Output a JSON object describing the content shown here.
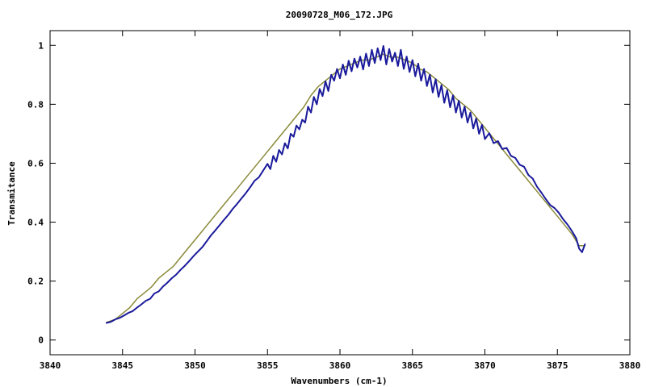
{
  "chart_data": {
    "type": "line",
    "title": "20090728_M06_172.JPG",
    "xlabel": "Wavenumbers (cm-1)",
    "ylabel": "Transmitance",
    "xlim": [
      3840,
      3880
    ],
    "ylim": [
      -0.05,
      1.05
    ],
    "xticks": [
      3840,
      3845,
      3850,
      3855,
      3860,
      3865,
      3870,
      3875,
      3880
    ],
    "yticks": [
      0,
      0.2,
      0.4,
      0.6,
      0.8,
      1
    ],
    "ytick_labels": [
      "0",
      "0.2",
      "0.4",
      "0.6",
      "0.8",
      "1"
    ],
    "grid": false,
    "legend": "none",
    "series": [
      {
        "color": "#8a8a3a",
        "points": [
          [
            3843.9,
            0.06
          ],
          [
            3844.5,
            0.07
          ],
          [
            3845.0,
            0.09
          ],
          [
            3845.5,
            0.11
          ],
          [
            3846.0,
            0.14
          ],
          [
            3846.5,
            0.16
          ],
          [
            3847.0,
            0.18
          ],
          [
            3847.5,
            0.21
          ],
          [
            3848.0,
            0.23
          ],
          [
            3848.5,
            0.25
          ],
          [
            3849.0,
            0.28
          ],
          [
            3849.5,
            0.31
          ],
          [
            3850.0,
            0.34
          ],
          [
            3850.5,
            0.37
          ],
          [
            3851.0,
            0.4
          ],
          [
            3851.5,
            0.43
          ],
          [
            3852.0,
            0.46
          ],
          [
            3852.5,
            0.49
          ],
          [
            3853.0,
            0.52
          ],
          [
            3853.5,
            0.55
          ],
          [
            3854.0,
            0.58
          ],
          [
            3854.5,
            0.61
          ],
          [
            3855.0,
            0.64
          ],
          [
            3855.5,
            0.67
          ],
          [
            3856.0,
            0.7
          ],
          [
            3856.5,
            0.73
          ],
          [
            3857.0,
            0.76
          ],
          [
            3857.5,
            0.79
          ],
          [
            3858.0,
            0.83
          ],
          [
            3858.5,
            0.86
          ],
          [
            3859.0,
            0.88
          ],
          [
            3859.5,
            0.9
          ],
          [
            3860.0,
            0.92
          ],
          [
            3860.5,
            0.93
          ],
          [
            3861.0,
            0.94
          ],
          [
            3861.5,
            0.95
          ],
          [
            3862.0,
            0.95
          ],
          [
            3862.5,
            0.96
          ],
          [
            3863.0,
            0.97
          ],
          [
            3863.5,
            0.96
          ],
          [
            3864.0,
            0.96
          ],
          [
            3864.5,
            0.95
          ],
          [
            3865.0,
            0.94
          ],
          [
            3865.5,
            0.92
          ],
          [
            3866.0,
            0.91
          ],
          [
            3866.5,
            0.89
          ],
          [
            3867.0,
            0.87
          ],
          [
            3867.5,
            0.85
          ],
          [
            3868.0,
            0.82
          ],
          [
            3868.5,
            0.8
          ],
          [
            3869.0,
            0.78
          ],
          [
            3869.5,
            0.75
          ],
          [
            3870.0,
            0.72
          ],
          [
            3870.5,
            0.69
          ],
          [
            3871.0,
            0.66
          ],
          [
            3871.5,
            0.63
          ],
          [
            3872.0,
            0.6
          ],
          [
            3872.5,
            0.57
          ],
          [
            3873.0,
            0.54
          ],
          [
            3873.5,
            0.51
          ],
          [
            3874.0,
            0.48
          ],
          [
            3874.5,
            0.45
          ],
          [
            3875.0,
            0.42
          ],
          [
            3875.5,
            0.39
          ],
          [
            3876.0,
            0.36
          ],
          [
            3876.5,
            0.32
          ],
          [
            3876.9,
            0.32
          ]
        ]
      },
      {
        "color": "#1a1a9c",
        "points": [
          [
            3843.9,
            0.058
          ],
          [
            3844.2,
            0.062
          ],
          [
            3844.5,
            0.07
          ],
          [
            3844.8,
            0.075
          ],
          [
            3845.1,
            0.083
          ],
          [
            3845.4,
            0.092
          ],
          [
            3845.7,
            0.098
          ],
          [
            3846.0,
            0.11
          ],
          [
            3846.3,
            0.121
          ],
          [
            3846.6,
            0.133
          ],
          [
            3846.9,
            0.14
          ],
          [
            3847.2,
            0.158
          ],
          [
            3847.5,
            0.165
          ],
          [
            3847.8,
            0.182
          ],
          [
            3848.1,
            0.195
          ],
          [
            3848.4,
            0.21
          ],
          [
            3848.7,
            0.222
          ],
          [
            3849.0,
            0.238
          ],
          [
            3849.3,
            0.252
          ],
          [
            3849.6,
            0.268
          ],
          [
            3849.9,
            0.285
          ],
          [
            3850.2,
            0.3
          ],
          [
            3850.5,
            0.315
          ],
          [
            3850.8,
            0.335
          ],
          [
            3851.1,
            0.355
          ],
          [
            3851.4,
            0.372
          ],
          [
            3851.7,
            0.39
          ],
          [
            3852.0,
            0.408
          ],
          [
            3852.3,
            0.425
          ],
          [
            3852.6,
            0.445
          ],
          [
            3852.9,
            0.462
          ],
          [
            3853.2,
            0.48
          ],
          [
            3853.5,
            0.498
          ],
          [
            3853.8,
            0.518
          ],
          [
            3854.1,
            0.54
          ],
          [
            3854.4,
            0.552
          ],
          [
            3854.7,
            0.575
          ],
          [
            3855.0,
            0.598
          ],
          [
            3855.2,
            0.58
          ],
          [
            3855.4,
            0.625
          ],
          [
            3855.6,
            0.605
          ],
          [
            3855.8,
            0.645
          ],
          [
            3856.0,
            0.63
          ],
          [
            3856.2,
            0.668
          ],
          [
            3856.4,
            0.65
          ],
          [
            3856.6,
            0.7
          ],
          [
            3856.8,
            0.69
          ],
          [
            3857.0,
            0.728
          ],
          [
            3857.2,
            0.715
          ],
          [
            3857.4,
            0.748
          ],
          [
            3857.6,
            0.738
          ],
          [
            3857.8,
            0.792
          ],
          [
            3858.0,
            0.772
          ],
          [
            3858.2,
            0.825
          ],
          [
            3858.4,
            0.8
          ],
          [
            3858.6,
            0.852
          ],
          [
            3858.8,
            0.828
          ],
          [
            3859.0,
            0.878
          ],
          [
            3859.2,
            0.845
          ],
          [
            3859.4,
            0.9
          ],
          [
            3859.6,
            0.88
          ],
          [
            3859.8,
            0.92
          ],
          [
            3860.0,
            0.888
          ],
          [
            3860.2,
            0.935
          ],
          [
            3860.4,
            0.9
          ],
          [
            3860.6,
            0.948
          ],
          [
            3860.8,
            0.912
          ],
          [
            3861.0,
            0.955
          ],
          [
            3861.2,
            0.925
          ],
          [
            3861.4,
            0.962
          ],
          [
            3861.6,
            0.918
          ],
          [
            3861.8,
            0.972
          ],
          [
            3862.0,
            0.93
          ],
          [
            3862.2,
            0.985
          ],
          [
            3862.4,
            0.94
          ],
          [
            3862.6,
            0.99
          ],
          [
            3862.8,
            0.95
          ],
          [
            3863.0,
            0.998
          ],
          [
            3863.2,
            0.935
          ],
          [
            3863.4,
            0.988
          ],
          [
            3863.6,
            0.945
          ],
          [
            3863.8,
            0.975
          ],
          [
            3864.0,
            0.93
          ],
          [
            3864.2,
            0.985
          ],
          [
            3864.4,
            0.92
          ],
          [
            3864.6,
            0.962
          ],
          [
            3864.8,
            0.91
          ],
          [
            3865.0,
            0.95
          ],
          [
            3865.2,
            0.895
          ],
          [
            3865.4,
            0.938
          ],
          [
            3865.6,
            0.88
          ],
          [
            3865.8,
            0.92
          ],
          [
            3866.0,
            0.862
          ],
          [
            3866.2,
            0.9
          ],
          [
            3866.4,
            0.84
          ],
          [
            3866.6,
            0.885
          ],
          [
            3866.8,
            0.825
          ],
          [
            3867.0,
            0.865
          ],
          [
            3867.2,
            0.805
          ],
          [
            3867.4,
            0.848
          ],
          [
            3867.6,
            0.79
          ],
          [
            3867.8,
            0.83
          ],
          [
            3868.0,
            0.772
          ],
          [
            3868.2,
            0.812
          ],
          [
            3868.4,
            0.755
          ],
          [
            3868.6,
            0.792
          ],
          [
            3868.8,
            0.738
          ],
          [
            3869.0,
            0.772
          ],
          [
            3869.2,
            0.718
          ],
          [
            3869.4,
            0.752
          ],
          [
            3869.6,
            0.7
          ],
          [
            3869.8,
            0.73
          ],
          [
            3870.0,
            0.682
          ],
          [
            3870.3,
            0.702
          ],
          [
            3870.6,
            0.668
          ],
          [
            3870.9,
            0.675
          ],
          [
            3871.2,
            0.648
          ],
          [
            3871.5,
            0.652
          ],
          [
            3871.8,
            0.625
          ],
          [
            3872.1,
            0.618
          ],
          [
            3872.4,
            0.595
          ],
          [
            3872.7,
            0.588
          ],
          [
            3873.0,
            0.56
          ],
          [
            3873.3,
            0.548
          ],
          [
            3873.6,
            0.52
          ],
          [
            3873.9,
            0.5
          ],
          [
            3874.2,
            0.478
          ],
          [
            3874.5,
            0.458
          ],
          [
            3874.8,
            0.448
          ],
          [
            3875.1,
            0.432
          ],
          [
            3875.4,
            0.41
          ],
          [
            3875.7,
            0.392
          ],
          [
            3876.0,
            0.37
          ],
          [
            3876.3,
            0.345
          ],
          [
            3876.5,
            0.31
          ],
          [
            3876.7,
            0.298
          ],
          [
            3876.9,
            0.325
          ]
        ]
      }
    ]
  }
}
